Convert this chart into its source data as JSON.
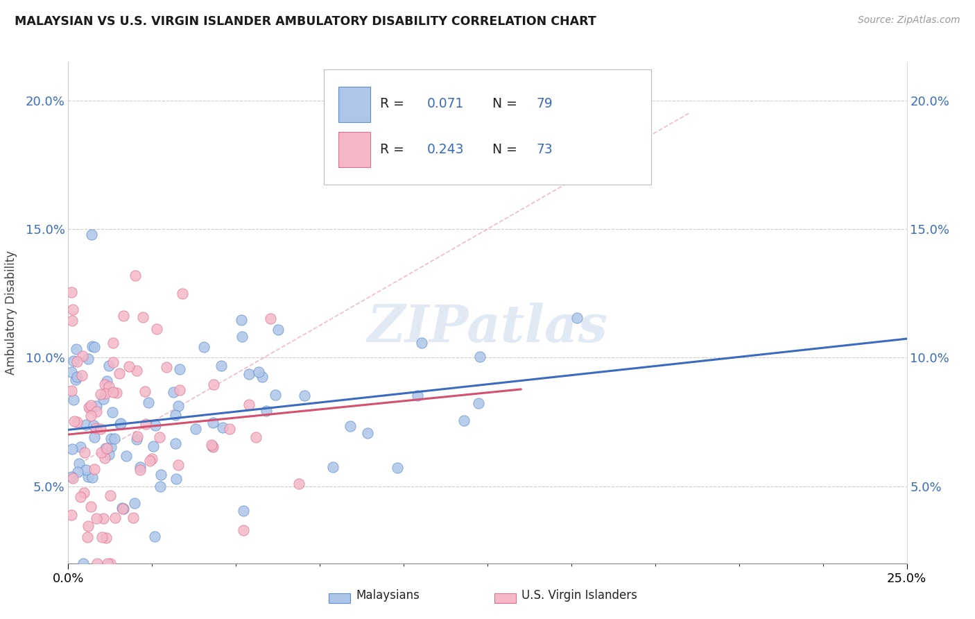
{
  "title": "MALAYSIAN VS U.S. VIRGIN ISLANDER AMBULATORY DISABILITY CORRELATION CHART",
  "source": "Source: ZipAtlas.com",
  "ylabel": "Ambulatory Disability",
  "xlim": [
    0.0,
    0.25
  ],
  "ylim": [
    0.02,
    0.215
  ],
  "x_ticks": [
    0.0,
    0.25
  ],
  "x_tick_labels": [
    "0.0%",
    "25.0%"
  ],
  "y_ticks": [
    0.05,
    0.1,
    0.15,
    0.2
  ],
  "y_tick_labels": [
    "5.0%",
    "10.0%",
    "15.0%",
    "20.0%"
  ],
  "legend_blue": "Malaysians",
  "legend_pink": "U.S. Virgin Islanders",
  "R_blue": 0.071,
  "N_blue": 79,
  "R_pink": 0.243,
  "N_pink": 73,
  "blue_fill": "#aec6e8",
  "blue_edge": "#5b8dd4",
  "pink_fill": "#f4b8c8",
  "pink_edge": "#e07090",
  "blue_line": "#3a6bbf",
  "pink_line": "#d45070",
  "diag_line": "#e8a0b0",
  "watermark": "ZIPatlas",
  "bg": "#ffffff",
  "seed_blue": 42,
  "seed_pink": 7
}
